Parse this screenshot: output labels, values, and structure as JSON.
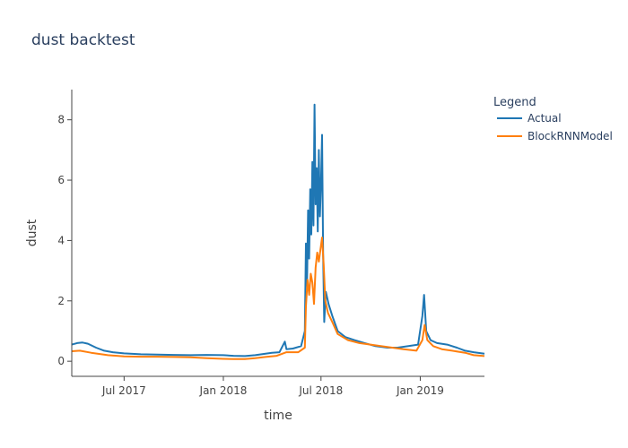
{
  "chart_data": {
    "type": "line",
    "title": "dust backtest",
    "xlabel": "time",
    "ylabel": "dust",
    "x_ticks": [
      "Jul 2017",
      "Jan 2018",
      "Jul 2018",
      "Jan 2019"
    ],
    "y_ticks": [
      "0",
      "2",
      "4",
      "6",
      "8"
    ],
    "ylim": [
      -0.5,
      9
    ],
    "xlim": [
      "2017-03-26",
      "2019-04-30"
    ],
    "grid": false,
    "legend": {
      "title": "Legend",
      "placement": "top-right"
    },
    "series": [
      {
        "name": "Actual",
        "color": "#1f77b4",
        "points": [
          [
            "2017-03-26",
            0.55
          ],
          [
            "2017-04-05",
            0.6
          ],
          [
            "2017-04-15",
            0.62
          ],
          [
            "2017-04-25",
            0.58
          ],
          [
            "2017-05-10",
            0.45
          ],
          [
            "2017-05-25",
            0.35
          ],
          [
            "2017-06-10",
            0.3
          ],
          [
            "2017-07-01",
            0.26
          ],
          [
            "2017-08-01",
            0.23
          ],
          [
            "2017-09-01",
            0.22
          ],
          [
            "2017-10-01",
            0.21
          ],
          [
            "2017-11-01",
            0.2
          ],
          [
            "2017-12-01",
            0.21
          ],
          [
            "2018-01-01",
            0.2
          ],
          [
            "2018-01-20",
            0.18
          ],
          [
            "2018-02-10",
            0.17
          ],
          [
            "2018-03-01",
            0.2
          ],
          [
            "2018-03-20",
            0.25
          ],
          [
            "2018-04-01",
            0.28
          ],
          [
            "2018-04-15",
            0.3
          ],
          [
            "2018-04-25",
            0.65
          ],
          [
            "2018-04-28",
            0.4
          ],
          [
            "2018-05-10",
            0.42
          ],
          [
            "2018-05-25",
            0.5
          ],
          [
            "2018-06-01",
            1.0
          ],
          [
            "2018-06-03",
            3.9
          ],
          [
            "2018-06-05",
            2.5
          ],
          [
            "2018-06-07",
            5.0
          ],
          [
            "2018-06-09",
            3.4
          ],
          [
            "2018-06-11",
            5.7
          ],
          [
            "2018-06-13",
            4.2
          ],
          [
            "2018-06-15",
            6.6
          ],
          [
            "2018-06-17",
            4.5
          ],
          [
            "2018-06-19",
            8.5
          ],
          [
            "2018-06-21",
            5.2
          ],
          [
            "2018-06-23",
            6.4
          ],
          [
            "2018-06-25",
            4.3
          ],
          [
            "2018-06-27",
            7.0
          ],
          [
            "2018-06-29",
            4.8
          ],
          [
            "2018-07-01",
            5.9
          ],
          [
            "2018-07-03",
            7.5
          ],
          [
            "2018-07-05",
            3.5
          ],
          [
            "2018-07-07",
            1.3
          ],
          [
            "2018-07-10",
            2.3
          ],
          [
            "2018-07-15",
            1.9
          ],
          [
            "2018-07-22",
            1.5
          ],
          [
            "2018-08-01",
            1.0
          ],
          [
            "2018-08-15",
            0.8
          ],
          [
            "2018-09-01",
            0.7
          ],
          [
            "2018-09-20",
            0.6
          ],
          [
            "2018-10-10",
            0.5
          ],
          [
            "2018-11-01",
            0.45
          ],
          [
            "2018-11-20",
            0.45
          ],
          [
            "2018-12-10",
            0.5
          ],
          [
            "2018-12-28",
            0.55
          ],
          [
            "2019-01-05",
            1.5
          ],
          [
            "2019-01-08",
            2.2
          ],
          [
            "2019-01-12",
            1.0
          ],
          [
            "2019-01-20",
            0.7
          ],
          [
            "2019-02-01",
            0.6
          ],
          [
            "2019-02-20",
            0.55
          ],
          [
            "2019-03-10",
            0.45
          ],
          [
            "2019-03-25",
            0.35
          ],
          [
            "2019-04-10",
            0.3
          ],
          [
            "2019-04-30",
            0.25
          ]
        ]
      },
      {
        "name": "BlockRNNModel",
        "color": "#ff7f0e",
        "points": [
          [
            "2017-03-26",
            0.33
          ],
          [
            "2017-04-10",
            0.35
          ],
          [
            "2017-05-01",
            0.28
          ],
          [
            "2017-06-01",
            0.2
          ],
          [
            "2017-07-01",
            0.16
          ],
          [
            "2017-08-01",
            0.15
          ],
          [
            "2017-09-01",
            0.15
          ],
          [
            "2017-10-01",
            0.14
          ],
          [
            "2017-11-01",
            0.13
          ],
          [
            "2017-12-01",
            0.1
          ],
          [
            "2018-01-01",
            0.08
          ],
          [
            "2018-01-20",
            0.07
          ],
          [
            "2018-02-10",
            0.07
          ],
          [
            "2018-03-01",
            0.1
          ],
          [
            "2018-03-20",
            0.14
          ],
          [
            "2018-04-10",
            0.18
          ],
          [
            "2018-04-28",
            0.3
          ],
          [
            "2018-05-20",
            0.3
          ],
          [
            "2018-06-01",
            0.45
          ],
          [
            "2018-06-03",
            1.8
          ],
          [
            "2018-06-06",
            2.7
          ],
          [
            "2018-06-09",
            2.2
          ],
          [
            "2018-06-12",
            2.9
          ],
          [
            "2018-06-15",
            2.6
          ],
          [
            "2018-06-18",
            1.9
          ],
          [
            "2018-06-21",
            3.1
          ],
          [
            "2018-06-24",
            3.6
          ],
          [
            "2018-06-27",
            3.3
          ],
          [
            "2018-06-30",
            3.7
          ],
          [
            "2018-07-03",
            4.1
          ],
          [
            "2018-07-06",
            3.2
          ],
          [
            "2018-07-09",
            2.0
          ],
          [
            "2018-07-14",
            1.6
          ],
          [
            "2018-07-22",
            1.3
          ],
          [
            "2018-08-01",
            0.9
          ],
          [
            "2018-08-20",
            0.7
          ],
          [
            "2018-09-10",
            0.6
          ],
          [
            "2018-10-01",
            0.55
          ],
          [
            "2018-10-20",
            0.5
          ],
          [
            "2018-11-10",
            0.45
          ],
          [
            "2018-12-01",
            0.4
          ],
          [
            "2018-12-25",
            0.35
          ],
          [
            "2019-01-05",
            0.7
          ],
          [
            "2019-01-09",
            1.2
          ],
          [
            "2019-01-14",
            0.7
          ],
          [
            "2019-01-25",
            0.5
          ],
          [
            "2019-02-10",
            0.4
          ],
          [
            "2019-03-01",
            0.35
          ],
          [
            "2019-03-25",
            0.28
          ],
          [
            "2019-04-10",
            0.2
          ],
          [
            "2019-04-30",
            0.17
          ]
        ]
      }
    ]
  }
}
